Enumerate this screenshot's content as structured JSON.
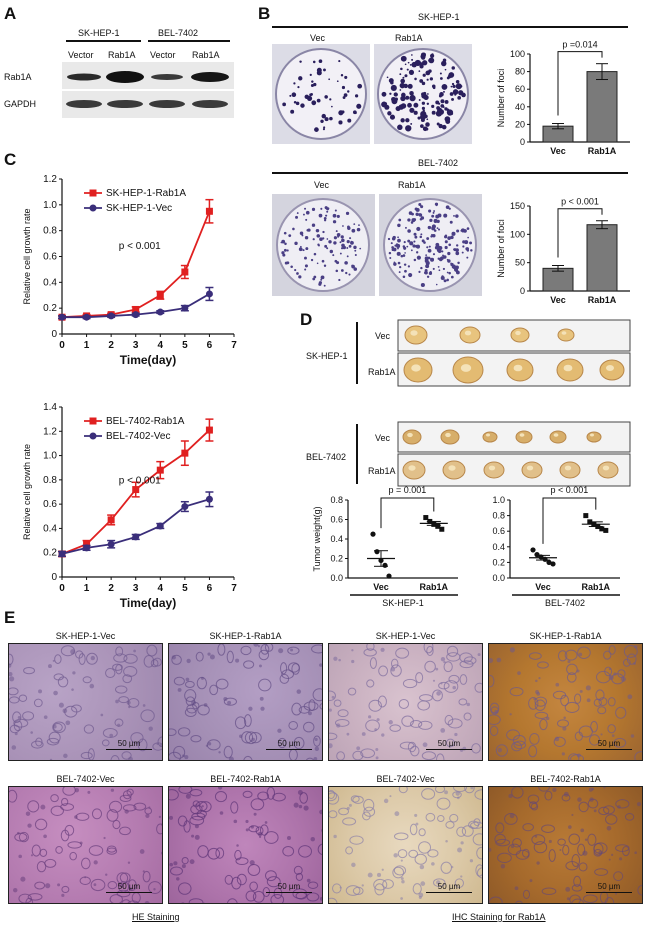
{
  "panels": {
    "A": "A",
    "B": "B",
    "C": "C",
    "D": "D",
    "E": "E"
  },
  "panelA": {
    "cell_lines": [
      "SK-HEP-1",
      "BEL-7402"
    ],
    "lanes": [
      "Vector",
      "Rab1A",
      "Vector",
      "Rab1A"
    ],
    "rows": [
      "Rab1A",
      "GAPDH"
    ]
  },
  "panelB": {
    "top": {
      "cell_line": "SK-HEP-1",
      "plates": [
        "Vec",
        "Rab1A"
      ]
    },
    "bottom": {
      "cell_line": "BEL-7402",
      "plates": [
        "Vec",
        "Rab1A"
      ]
    }
  },
  "panelD": {
    "groups": [
      {
        "cell_line": "SK-HEP-1",
        "rows": [
          "Vec",
          "Rab1A"
        ]
      },
      {
        "cell_line": "BEL-7402",
        "rows": [
          "Vec",
          "Rab1A"
        ]
      }
    ]
  },
  "panelE": {
    "row1": [
      "SK-HEP-1-Vec",
      "SK-HEP-1-Rab1A",
      "SK-HEP-1-Vec",
      "SK-HEP-1-Rab1A"
    ],
    "row2": [
      "BEL-7402-Vec",
      "BEL-7402-Rab1A",
      "BEL-7402-Vec",
      "BEL-7402-Rab1A"
    ],
    "scalebar": "50 µm",
    "footer_he": "HE Staining",
    "footer_ihc": "IHC Staining for Rab1A"
  },
  "chart_data": [
    {
      "id": "B_top",
      "type": "bar",
      "categories": [
        "Vec",
        "Rab1A"
      ],
      "values": [
        18,
        80
      ],
      "errors": [
        3,
        9
      ],
      "ylabel": "Number of foci",
      "ylim": [
        0,
        100
      ],
      "yticks": [
        0,
        20,
        40,
        60,
        80,
        100
      ],
      "annotation": "p =0.014"
    },
    {
      "id": "B_bottom",
      "type": "bar",
      "categories": [
        "Vec",
        "Rab1A"
      ],
      "values": [
        40,
        117
      ],
      "errors": [
        5,
        7
      ],
      "ylabel": "Number of foci",
      "ylim": [
        0,
        150
      ],
      "yticks": [
        0,
        50,
        100,
        150
      ],
      "annotation": "p < 0.001"
    },
    {
      "id": "C_top",
      "type": "line",
      "x": [
        0,
        1,
        2,
        3,
        4,
        5,
        6
      ],
      "xlabel": "Time(day)",
      "ylabel": "Relative cell growth rate",
      "xlim": [
        0,
        7
      ],
      "xticks": [
        0,
        1,
        2,
        3,
        4,
        5,
        6,
        7
      ],
      "ylim": [
        0,
        1.2
      ],
      "yticks": [
        0,
        0.2,
        0.4,
        0.6,
        0.8,
        1.0,
        1.2
      ],
      "yticklabels": [
        "0",
        "0.2",
        "0.4",
        "0.6",
        "0.8",
        "1.0",
        "1.2"
      ],
      "annotation": "p < 0.001",
      "legend": "top-left",
      "series": [
        {
          "name": "SK-HEP-1-Rab1A",
          "color": "#e02020",
          "marker": "square",
          "values": [
            0.13,
            0.14,
            0.15,
            0.19,
            0.3,
            0.48,
            0.95
          ],
          "errors": [
            0.01,
            0.01,
            0.01,
            0.02,
            0.03,
            0.05,
            0.09
          ]
        },
        {
          "name": "SK-HEP-1-Vec",
          "color": "#3a2e7a",
          "marker": "circle",
          "values": [
            0.13,
            0.13,
            0.14,
            0.15,
            0.17,
            0.2,
            0.31
          ],
          "errors": [
            0.01,
            0.01,
            0.01,
            0.01,
            0.01,
            0.02,
            0.05
          ]
        }
      ]
    },
    {
      "id": "C_bottom",
      "type": "line",
      "x": [
        0,
        1,
        2,
        3,
        4,
        5,
        6
      ],
      "xlabel": "Time(day)",
      "ylabel": "Relative cell growth rate",
      "xlim": [
        0,
        7
      ],
      "xticks": [
        0,
        1,
        2,
        3,
        4,
        5,
        6,
        7
      ],
      "ylim": [
        0,
        1.4
      ],
      "yticks": [
        0,
        0.2,
        0.4,
        0.6,
        0.8,
        1.0,
        1.2,
        1.4
      ],
      "yticklabels": [
        "0",
        "0.2",
        "0.4",
        "0.6",
        "0.8",
        "1.0",
        "1.2",
        "1.4"
      ],
      "annotation": "p < 0.001",
      "legend": "top-left",
      "series": [
        {
          "name": "BEL-7402-Rab1A",
          "color": "#e02020",
          "marker": "square",
          "values": [
            0.19,
            0.27,
            0.47,
            0.72,
            0.88,
            1.02,
            1.21
          ],
          "errors": [
            0.02,
            0.03,
            0.04,
            0.06,
            0.07,
            0.1,
            0.09
          ]
        },
        {
          "name": "BEL-7402-Vec",
          "color": "#3a2e7a",
          "marker": "circle",
          "values": [
            0.19,
            0.24,
            0.27,
            0.33,
            0.42,
            0.58,
            0.64
          ],
          "errors": [
            0.02,
            0.02,
            0.03,
            0.02,
            0.02,
            0.04,
            0.06
          ]
        }
      ]
    },
    {
      "id": "D_left",
      "type": "scatter",
      "categories": [
        "Vec",
        "Rab1A"
      ],
      "ylabel": "Tumor weight(g)",
      "ylim": [
        0,
        0.8
      ],
      "yticks": [
        0,
        0.2,
        0.4,
        0.6,
        0.8
      ],
      "yticklabels": [
        "0.0",
        "0.2",
        "0.4",
        "0.6",
        "0.8"
      ],
      "annotation": "p = 0.001",
      "group_label": "SK-HEP-1",
      "points": [
        [
          0.45,
          0.27,
          0.18,
          0.13,
          0.02
        ],
        [
          0.62,
          0.58,
          0.55,
          0.53,
          0.5
        ]
      ],
      "means": [
        0.2,
        0.56
      ],
      "sem": [
        0.08,
        0.02
      ]
    },
    {
      "id": "D_right",
      "type": "scatter",
      "categories": [
        "Vec",
        "Rab1A"
      ],
      "ylim": [
        0,
        1.0
      ],
      "yticks": [
        0,
        0.2,
        0.4,
        0.6,
        0.8,
        1.0
      ],
      "yticklabels": [
        "0.0",
        "0.2",
        "0.4",
        "0.6",
        "0.8",
        "1.0"
      ],
      "annotation": "p < 0.001",
      "group_label": "BEL-7402",
      "points": [
        [
          0.36,
          0.3,
          0.27,
          0.24,
          0.2,
          0.18
        ],
        [
          0.8,
          0.72,
          0.69,
          0.66,
          0.63,
          0.61
        ]
      ],
      "means": [
        0.26,
        0.69
      ],
      "sem": [
        0.03,
        0.03
      ]
    }
  ]
}
